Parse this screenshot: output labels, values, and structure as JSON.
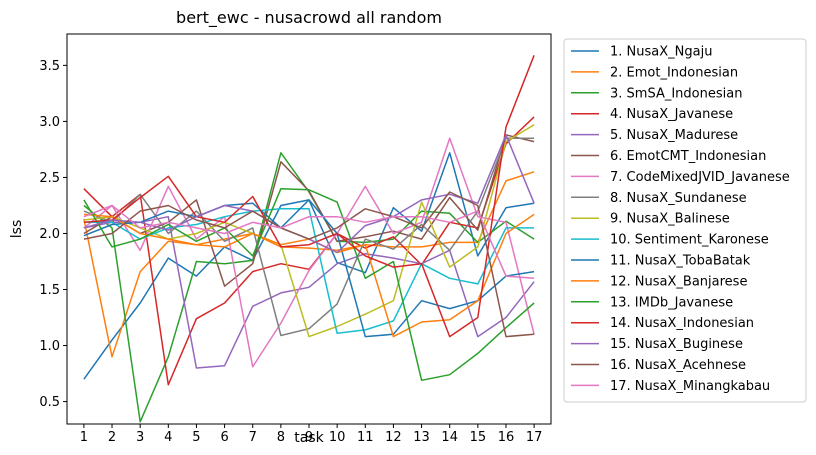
{
  "chart_data": {
    "type": "line",
    "title": "bert_ewc - nusacrowd all random",
    "xlabel": "task",
    "ylabel": "lss",
    "x": [
      1,
      2,
      3,
      4,
      5,
      6,
      7,
      8,
      9,
      10,
      11,
      12,
      13,
      14,
      15,
      16,
      17
    ],
    "xlim": [
      0.4,
      17.6
    ],
    "ylim": [
      0.3,
      3.78
    ],
    "yticks": [
      0.5,
      1.0,
      1.5,
      2.0,
      2.5,
      3.0,
      3.5
    ],
    "ytick_labels": [
      "0.5",
      "1.0",
      "1.5",
      "2.0",
      "2.5",
      "3.0",
      "3.5"
    ],
    "grid": false,
    "legend_position": "outside-right",
    "series": [
      {
        "name": "1. NusaX_Ngaju",
        "color": "#1f77b4",
        "values": [
          0.7,
          1.05,
          1.38,
          1.78,
          1.62,
          1.88,
          1.76,
          2.25,
          2.3,
          1.74,
          1.65,
          2.23,
          2.02,
          2.72,
          1.8,
          2.23,
          2.27
        ]
      },
      {
        "name": "2. Emot_Indonesian",
        "color": "#ff7f0e",
        "values": [
          2.13,
          0.9,
          1.66,
          1.93,
          1.9,
          1.95,
          2.0,
          1.88,
          1.87,
          1.85,
          1.9,
          1.88,
          1.88,
          1.92,
          1.92,
          2.47,
          2.55
        ]
      },
      {
        "name": "3. SmSA_Indonesian",
        "color": "#2ca02c",
        "values": [
          2.25,
          2.05,
          0.32,
          0.9,
          1.75,
          1.73,
          1.76,
          2.72,
          2.37,
          1.93,
          1.92,
          1.95,
          2.2,
          2.18,
          1.92,
          2.11,
          1.95
        ]
      },
      {
        "name": "4. NusaX_Javanese",
        "color": "#d62728",
        "values": [
          2.4,
          2.15,
          2.35,
          0.65,
          1.24,
          1.38,
          1.66,
          1.73,
          1.68,
          2.0,
          1.87,
          1.97,
          1.72,
          2.1,
          2.05,
          2.8,
          3.04
        ]
      },
      {
        "name": "5. NusaX_Madurese",
        "color": "#9467bd",
        "values": [
          2.05,
          2.1,
          2.1,
          2.15,
          0.8,
          0.82,
          1.35,
          1.47,
          1.52,
          1.73,
          1.82,
          1.78,
          1.73,
          1.85,
          1.08,
          1.25,
          1.57
        ]
      },
      {
        "name": "6. EmotCMT_Indonesian",
        "color": "#8c564b",
        "values": [
          2.0,
          2.15,
          2.0,
          2.1,
          2.3,
          1.53,
          1.73,
          2.64,
          2.38,
          1.93,
          1.97,
          2.02,
          1.95,
          2.32,
          2.03,
          2.88,
          2.82
        ]
      },
      {
        "name": "7. CodeMixedJVID_Javanese",
        "color": "#e377c2",
        "values": [
          2.05,
          2.25,
          1.85,
          2.42,
          1.95,
          2.15,
          0.81,
          1.2,
          1.67,
          2.0,
          2.42,
          2.0,
          2.1,
          2.85,
          2.15,
          2.1,
          1.1
        ]
      },
      {
        "name": "8. NusaX_Sundanese",
        "color": "#7f7f7f",
        "values": [
          2.2,
          2.1,
          2.35,
          2.0,
          2.2,
          1.93,
          2.05,
          1.09,
          1.15,
          1.37,
          1.95,
          1.86,
          2.08,
          1.85,
          2.2,
          2.85,
          2.85
        ]
      },
      {
        "name": "9. NusaX_Balinese",
        "color": "#bcbd22",
        "values": [
          2.12,
          2.15,
          2.05,
          1.95,
          2.0,
          2.1,
          2.0,
          1.9,
          1.08,
          1.17,
          1.28,
          1.4,
          2.28,
          1.7,
          1.88,
          2.82,
          2.97
        ]
      },
      {
        "name": "10. Sentiment_Karonese",
        "color": "#17becf",
        "values": [
          2.1,
          2.1,
          1.95,
          2.05,
          2.08,
          2.15,
          2.2,
          2.22,
          2.22,
          1.11,
          1.14,
          1.22,
          1.73,
          1.6,
          1.55,
          2.05,
          2.05
        ]
      },
      {
        "name": "11. NusaX_TobaBatak",
        "color": "#1f77b4",
        "values": [
          1.98,
          2.08,
          2.1,
          2.2,
          2.15,
          2.25,
          2.27,
          2.05,
          2.3,
          2.0,
          1.08,
          1.1,
          1.4,
          1.33,
          1.4,
          1.62,
          1.66
        ]
      },
      {
        "name": "12. NusaX_Banjarese",
        "color": "#ff7f0e",
        "values": [
          2.17,
          2.15,
          2.0,
          1.95,
          1.9,
          1.88,
          2.0,
          1.9,
          1.95,
          1.83,
          1.9,
          1.08,
          1.21,
          1.23,
          1.4,
          2.0,
          2.17
        ]
      },
      {
        "name": "13. IMDb_Javanese",
        "color": "#2ca02c",
        "values": [
          2.3,
          1.88,
          1.95,
          2.08,
          1.93,
          2.05,
          1.8,
          2.4,
          2.39,
          2.28,
          1.6,
          1.75,
          0.69,
          0.74,
          0.93,
          1.16,
          1.38
        ]
      },
      {
        "name": "14. NusaX_Indonesian",
        "color": "#d62728",
        "values": [
          2.1,
          2.12,
          2.32,
          2.51,
          2.15,
          2.1,
          2.33,
          1.88,
          1.9,
          2.0,
          1.8,
          1.7,
          1.73,
          1.08,
          1.25,
          2.95,
          3.59
        ]
      },
      {
        "name": "15. NusaX_Buginese",
        "color": "#9467bd",
        "values": [
          2.05,
          2.12,
          2.1,
          2.03,
          2.15,
          2.25,
          2.2,
          2.05,
          1.95,
          1.83,
          2.07,
          2.15,
          2.3,
          2.35,
          2.27,
          2.88,
          2.27
        ]
      },
      {
        "name": "16. NusaX_Acehnese",
        "color": "#8c564b",
        "values": [
          1.95,
          2.0,
          2.2,
          2.25,
          2.12,
          2.05,
          2.2,
          2.05,
          1.95,
          2.05,
          2.22,
          2.15,
          2.05,
          2.37,
          2.25,
          1.08,
          1.1
        ]
      },
      {
        "name": "17. NusaX_Minangkabau",
        "color": "#e377c2",
        "values": [
          2.15,
          2.25,
          2.05,
          2.1,
          2.05,
          2.0,
          2.1,
          2.05,
          2.15,
          2.15,
          2.1,
          2.15,
          2.15,
          2.1,
          2.2,
          1.62,
          1.6
        ]
      }
    ]
  }
}
